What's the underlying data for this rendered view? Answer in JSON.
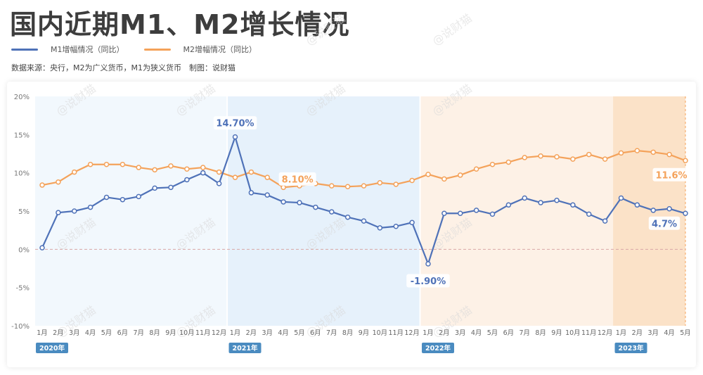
{
  "title": "国内近期M1、M2增长情况",
  "legend": [
    {
      "label": "M1增幅情况（同比）",
      "color": "#4f72b8"
    },
    {
      "label": "M2增幅情况（同比）",
      "color": "#f4a25a"
    }
  ],
  "source_note": "数据来源：央行，M2为广义货币，M1为狭义货币　制图：说财猫",
  "watermark": "@说财猫",
  "colors": {
    "m1": "#4f72b8",
    "m2": "#f4a25a",
    "year_badge": "#4a8bc0",
    "bg_2020": "#f2f8fd",
    "bg_2021": "#e6f1fb",
    "bg_2022": "#fdf1e6",
    "bg_2023": "#fbe2c8",
    "zero_line": "#d9a6a6"
  },
  "chart_data": {
    "type": "line",
    "title": "国内近期M1、M2增长情况",
    "xlabel": "",
    "ylabel": "",
    "ylim": [
      -10,
      20
    ],
    "yticks": [
      "20%",
      "15%",
      "10%",
      "5%",
      "0%",
      "-5%",
      "-10%"
    ],
    "ytick_values": [
      20,
      15,
      10,
      5,
      0,
      -5,
      -10
    ],
    "grid": false,
    "legend_position": "top-left",
    "categories": [
      "1月",
      "2月",
      "3月",
      "4月",
      "5月",
      "6月",
      "7月",
      "8月",
      "9月",
      "10月",
      "11月",
      "12月",
      "1月",
      "2月",
      "3月",
      "4月",
      "5月",
      "6月",
      "7月",
      "8月",
      "9月",
      "10月",
      "11月",
      "12月",
      "1月",
      "2月",
      "3月",
      "4月",
      "5月",
      "6月",
      "7月",
      "8月",
      "9月",
      "10月",
      "11月",
      "12月",
      "1月",
      "2月",
      "3月",
      "4月",
      "5月"
    ],
    "years": [
      {
        "label": "2020年",
        "start": 0,
        "end": 11
      },
      {
        "label": "2021年",
        "start": 12,
        "end": 23
      },
      {
        "label": "2022年",
        "start": 24,
        "end": 35
      },
      {
        "label": "2023年",
        "start": 36,
        "end": 40
      }
    ],
    "series": [
      {
        "name": "M1增幅情况（同比）",
        "values": [
          0.2,
          4.8,
          5.0,
          5.5,
          6.8,
          6.5,
          6.9,
          8.0,
          8.1,
          9.1,
          10.0,
          8.6,
          14.7,
          7.4,
          7.1,
          6.2,
          6.1,
          5.5,
          4.9,
          4.2,
          3.7,
          2.8,
          3.0,
          3.5,
          -1.9,
          4.7,
          4.7,
          5.1,
          4.6,
          5.8,
          6.7,
          6.1,
          6.4,
          5.8,
          4.6,
          3.7,
          6.7,
          5.8,
          5.1,
          5.3,
          4.7
        ]
      },
      {
        "name": "M2增幅情况（同比）",
        "values": [
          8.4,
          8.8,
          10.1,
          11.1,
          11.1,
          11.1,
          10.7,
          10.4,
          10.9,
          10.5,
          10.7,
          10.1,
          9.4,
          10.1,
          9.4,
          8.1,
          8.3,
          8.6,
          8.3,
          8.2,
          8.3,
          8.7,
          8.5,
          9.0,
          9.8,
          9.2,
          9.7,
          10.5,
          11.1,
          11.4,
          12.0,
          12.2,
          12.1,
          11.8,
          12.4,
          11.8,
          12.6,
          12.9,
          12.7,
          12.4,
          11.6
        ]
      }
    ],
    "annotations": [
      {
        "series": 0,
        "index": 12,
        "text": "14.70%"
      },
      {
        "series": 1,
        "index": 15,
        "text": "8.10%"
      },
      {
        "series": 0,
        "index": 24,
        "text": "-1.90%"
      },
      {
        "series": 1,
        "index": 40,
        "text": "11.6%"
      },
      {
        "series": 0,
        "index": 40,
        "text": "4.7%"
      }
    ]
  }
}
